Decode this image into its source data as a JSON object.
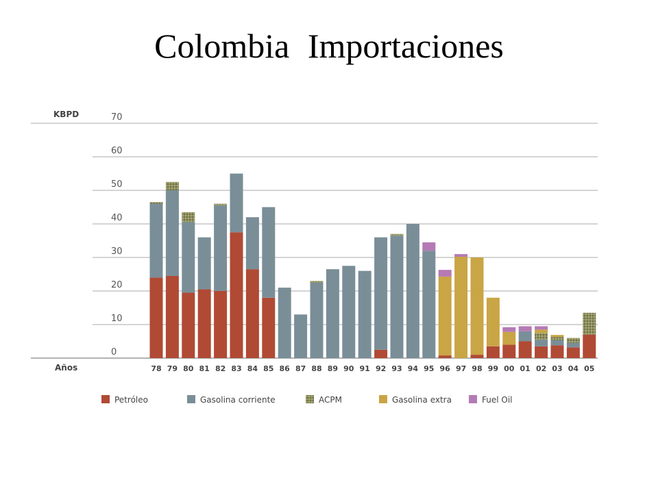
{
  "slide": {
    "title": "Colombia   Importaciones"
  },
  "chart_data": {
    "type": "bar",
    "stacked": true,
    "ylabel": "KBPD",
    "xlabel": "Años",
    "ylim": [
      0,
      70
    ],
    "yticks": [
      "0",
      "10",
      "20",
      "30",
      "40",
      "50",
      "60",
      "70"
    ],
    "grid": true,
    "legend_position": "bottom",
    "categories": [
      "78",
      "79",
      "80",
      "81",
      "82",
      "83",
      "84",
      "85",
      "86",
      "87",
      "88",
      "89",
      "90",
      "91",
      "92",
      "93",
      "94",
      "95",
      "96",
      "97",
      "98",
      "99",
      "00",
      "01",
      "02",
      "03",
      "04",
      "05"
    ],
    "series": [
      {
        "name": "Petróleo",
        "color": "#b04a34",
        "pattern": false,
        "values": [
          24,
          24.5,
          19.5,
          20.5,
          20,
          37.5,
          26.5,
          18,
          0,
          0,
          0,
          0,
          0,
          0,
          2.5,
          0,
          0,
          0,
          0.8,
          0,
          1,
          3.5,
          4,
          5,
          3.5,
          3.8,
          3.2,
          7
        ]
      },
      {
        "name": "Gasolina corriente",
        "color": "#7a8e98",
        "pattern": false,
        "values": [
          22,
          25.5,
          21,
          15.5,
          25.5,
          17.5,
          15.5,
          27,
          21,
          13,
          22.5,
          26.5,
          27.5,
          26,
          33.5,
          36.5,
          40,
          32,
          0,
          0,
          0,
          0,
          0,
          3,
          2,
          1.5,
          1.3,
          0
        ]
      },
      {
        "name": "ACPM",
        "color": "#8f9160",
        "pattern": true,
        "values": [
          0.5,
          2.5,
          3,
          0,
          0.5,
          0,
          0,
          0,
          0,
          0,
          0.5,
          0,
          0,
          0,
          0,
          0.5,
          0,
          0,
          0,
          0,
          0,
          0,
          0,
          0,
          2,
          1,
          1.5,
          6.5
        ]
      },
      {
        "name": "Gasolina extra",
        "color": "#c9a545",
        "pattern": false,
        "values": [
          0,
          0,
          0,
          0,
          0,
          0,
          0,
          0,
          0,
          0,
          0,
          0,
          0,
          0,
          0,
          0,
          0,
          0,
          23.5,
          30.2,
          29,
          14.5,
          3.8,
          0,
          1,
          0.6,
          0,
          0
        ]
      },
      {
        "name": "Fuel Oil",
        "color": "#b57ab5",
        "pattern": false,
        "values": [
          0,
          0,
          0,
          0,
          0,
          0,
          0,
          0,
          0,
          0,
          0,
          0,
          0,
          0,
          0,
          0,
          0,
          2.5,
          2,
          0.8,
          0,
          0,
          1.4,
          1.5,
          1,
          0,
          0,
          0
        ]
      }
    ]
  }
}
